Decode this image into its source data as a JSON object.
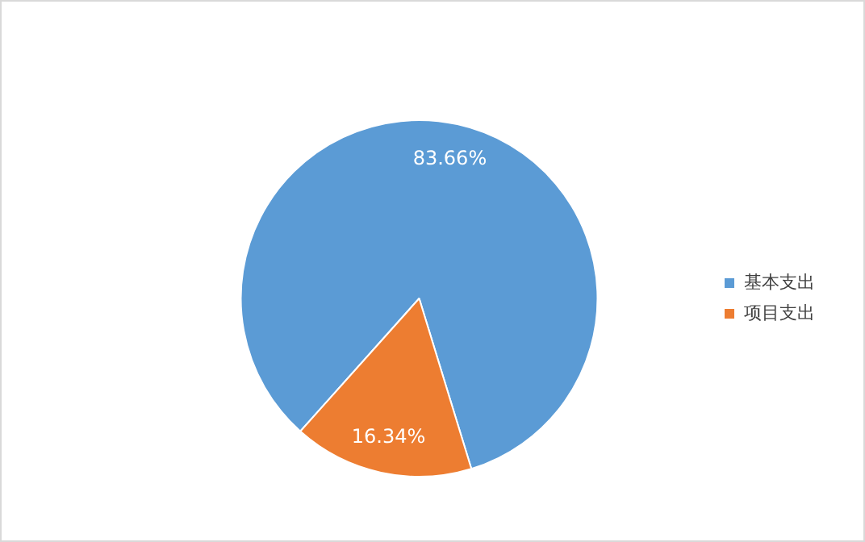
{
  "chart_data": {
    "type": "pie",
    "categories": [
      "基本支出",
      "项目支出"
    ],
    "values": [
      83.66,
      16.34
    ],
    "colors": [
      "#5b9bd5",
      "#ed7d31"
    ],
    "value_labels": [
      "83.66%",
      "16.34%"
    ],
    "legend": "right"
  }
}
